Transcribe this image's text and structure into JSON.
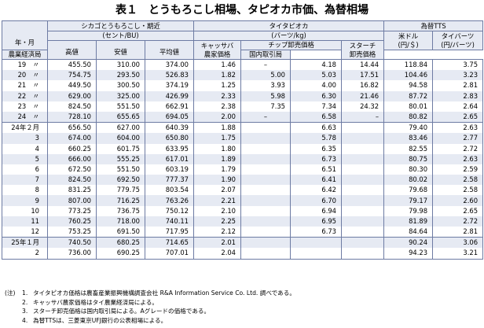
{
  "title": "表１　とうもろこし相場、タピオカ市価、為替相場",
  "headers": {
    "year_month": "年・月",
    "chicago": "シカゴとうもろこし・期近",
    "chicago_unit": "(セント/BU)",
    "high": "高値",
    "low": "安値",
    "avg": "平均値",
    "tapioca": "タイタピオカ",
    "tapioca_unit": "(バーツ/kg)",
    "cassava_1": "キャッサバ",
    "cassava_2": "農家価格",
    "chip": "チップ卸売価格",
    "chip_agri": "農業経済局",
    "chip_domestic": "国内取引局",
    "starch_1": "スターチ",
    "starch_2": "卸売価格",
    "fx": "為替TTS",
    "usd_1": "米ドル",
    "usd_2": "(円/＄)",
    "baht_1": "タイバーツ",
    "baht_2": "(円/バーツ)"
  },
  "rows": [
    {
      "label": "19　〃",
      "high": "455.50",
      "low": "310.00",
      "avg": "374.00",
      "cassava": "1.46",
      "chip_agri": "–",
      "chip_domestic": "4.18",
      "starch": "14.44",
      "usd": "118.84",
      "baht": "3.75"
    },
    {
      "label": "20　〃",
      "high": "754.75",
      "low": "293.50",
      "avg": "526.83",
      "cassava": "1.82",
      "chip_agri": "5.00",
      "chip_domestic": "5.03",
      "starch": "17.51",
      "usd": "104.46",
      "baht": "3.23"
    },
    {
      "label": "21　〃",
      "high": "449.50",
      "low": "300.50",
      "avg": "374.19",
      "cassava": "1.25",
      "chip_agri": "3.93",
      "chip_domestic": "4.00",
      "starch": "16.82",
      "usd": "94.58",
      "baht": "2.81"
    },
    {
      "label": "22　〃",
      "high": "629.00",
      "low": "325.00",
      "avg": "426.99",
      "cassava": "2.33",
      "chip_agri": "5.98",
      "chip_domestic": "6.30",
      "starch": "21.46",
      "usd": "87.72",
      "baht": "2.83"
    },
    {
      "label": "23　〃",
      "high": "824.50",
      "low": "551.50",
      "avg": "662.91",
      "cassava": "2.38",
      "chip_agri": "7.35",
      "chip_domestic": "7.34",
      "starch": "24.32",
      "usd": "80.01",
      "baht": "2.64"
    },
    {
      "label": "24　〃",
      "high": "728.10",
      "low": "655.65",
      "avg": "694.05",
      "cassava": "2.00",
      "chip_agri": "–",
      "chip_domestic": "6.58",
      "starch": "–",
      "usd": "80.82",
      "baht": "2.65"
    },
    {
      "label": "24年２月",
      "high": "656.50",
      "low": "627.00",
      "avg": "640.39",
      "cassava": "1.88",
      "chip_agri": "",
      "chip_domestic": "6.63",
      "starch": "",
      "usd": "79.40",
      "baht": "2.63"
    },
    {
      "label": "3",
      "high": "674.00",
      "low": "604.00",
      "avg": "650.80",
      "cassava": "1.75",
      "chip_agri": "",
      "chip_domestic": "5.78",
      "starch": "",
      "usd": "83.46",
      "baht": "2.77"
    },
    {
      "label": "4",
      "high": "660.25",
      "low": "601.75",
      "avg": "633.95",
      "cassava": "1.80",
      "chip_agri": "",
      "chip_domestic": "6.35",
      "starch": "",
      "usd": "82.55",
      "baht": "2.72"
    },
    {
      "label": "5",
      "high": "666.00",
      "low": "555.25",
      "avg": "617.01",
      "cassava": "1.89",
      "chip_agri": "",
      "chip_domestic": "6.73",
      "starch": "",
      "usd": "80.75",
      "baht": "2.63"
    },
    {
      "label": "6",
      "high": "672.50",
      "low": "551.50",
      "avg": "603.19",
      "cassava": "1.79",
      "chip_agri": "",
      "chip_domestic": "6.51",
      "starch": "",
      "usd": "80.30",
      "baht": "2.59"
    },
    {
      "label": "7",
      "high": "824.50",
      "low": "692.50",
      "avg": "777.37",
      "cassava": "1.90",
      "chip_agri": "",
      "chip_domestic": "6.41",
      "starch": "",
      "usd": "80.02",
      "baht": "2.58"
    },
    {
      "label": "8",
      "high": "831.25",
      "low": "779.75",
      "avg": "803.54",
      "cassava": "2.07",
      "chip_agri": "",
      "chip_domestic": "6.42",
      "starch": "",
      "usd": "79.68",
      "baht": "2.58"
    },
    {
      "label": "9",
      "high": "807.00",
      "low": "716.25",
      "avg": "763.26",
      "cassava": "2.21",
      "chip_agri": "",
      "chip_domestic": "6.70",
      "starch": "",
      "usd": "79.17",
      "baht": "2.60"
    },
    {
      "label": "10",
      "high": "773.25",
      "low": "736.75",
      "avg": "750.12",
      "cassava": "2.10",
      "chip_agri": "",
      "chip_domestic": "6.94",
      "starch": "",
      "usd": "79.98",
      "baht": "2.65"
    },
    {
      "label": "11",
      "high": "760.25",
      "low": "718.00",
      "avg": "740.11",
      "cassava": "2.25",
      "chip_agri": "",
      "chip_domestic": "6.95",
      "starch": "",
      "usd": "81.89",
      "baht": "2.72"
    },
    {
      "label": "12",
      "high": "753.25",
      "low": "691.50",
      "avg": "717.95",
      "cassava": "2.12",
      "chip_agri": "",
      "chip_domestic": "6.73",
      "starch": "",
      "usd": "84.64",
      "baht": "2.81"
    },
    {
      "label": "25年１月",
      "high": "740.50",
      "low": "680.25",
      "avg": "714.65",
      "cassava": "2.01",
      "chip_agri": "",
      "chip_domestic": "",
      "starch": "",
      "usd": "90.24",
      "baht": "3.06"
    },
    {
      "label": "2",
      "high": "736.00",
      "low": "690.25",
      "avg": "707.01",
      "cassava": "2.04",
      "chip_agri": "",
      "chip_domestic": "",
      "starch": "",
      "usd": "94.23",
      "baht": "3.21"
    }
  ],
  "notes": {
    "prefix": "(注)",
    "items": [
      {
        "num": "1.",
        "text": "タイタピオカ価格は農畜産業振興機構調査会社 R&A Information Service Co. Ltd. 調べである。"
      },
      {
        "num": "2.",
        "text": "キャッサバ農家価格はタイ農業経済局による。"
      },
      {
        "num": "3.",
        "text": "スターチ卸売価格は国内取引局による。Aグレードの価格である。"
      },
      {
        "num": "4.",
        "text": "為替TTSは、三菱東京UFJ銀行の公表相場による。"
      }
    ]
  }
}
